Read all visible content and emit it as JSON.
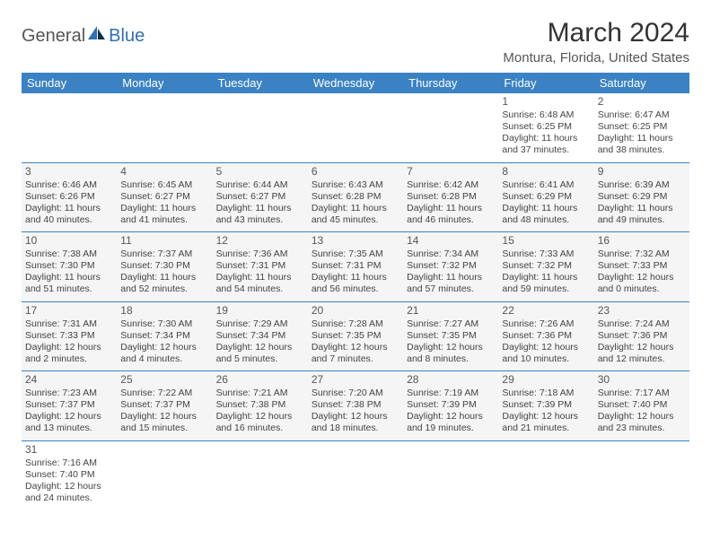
{
  "brand": {
    "general": "General",
    "blue": "Blue"
  },
  "title": "March 2024",
  "location": "Montura, Florida, United States",
  "colors": {
    "header_bg": "#3b82c4",
    "header_text": "#ffffff",
    "rule": "#3b82c4",
    "cell_bg": "#f5f5f5",
    "page_bg": "#ffffff",
    "logo_blue": "#2f6fb3",
    "text": "#444444"
  },
  "weekdays": [
    "Sunday",
    "Monday",
    "Tuesday",
    "Wednesday",
    "Thursday",
    "Friday",
    "Saturday"
  ],
  "weeks": [
    [
      null,
      null,
      null,
      null,
      null,
      {
        "d": "1",
        "sr": "Sunrise: 6:48 AM",
        "ss": "Sunset: 6:25 PM",
        "dl1": "Daylight: 11 hours",
        "dl2": "and 37 minutes."
      },
      {
        "d": "2",
        "sr": "Sunrise: 6:47 AM",
        "ss": "Sunset: 6:25 PM",
        "dl1": "Daylight: 11 hours",
        "dl2": "and 38 minutes."
      }
    ],
    [
      {
        "d": "3",
        "sr": "Sunrise: 6:46 AM",
        "ss": "Sunset: 6:26 PM",
        "dl1": "Daylight: 11 hours",
        "dl2": "and 40 minutes."
      },
      {
        "d": "4",
        "sr": "Sunrise: 6:45 AM",
        "ss": "Sunset: 6:27 PM",
        "dl1": "Daylight: 11 hours",
        "dl2": "and 41 minutes."
      },
      {
        "d": "5",
        "sr": "Sunrise: 6:44 AM",
        "ss": "Sunset: 6:27 PM",
        "dl1": "Daylight: 11 hours",
        "dl2": "and 43 minutes."
      },
      {
        "d": "6",
        "sr": "Sunrise: 6:43 AM",
        "ss": "Sunset: 6:28 PM",
        "dl1": "Daylight: 11 hours",
        "dl2": "and 45 minutes."
      },
      {
        "d": "7",
        "sr": "Sunrise: 6:42 AM",
        "ss": "Sunset: 6:28 PM",
        "dl1": "Daylight: 11 hours",
        "dl2": "and 46 minutes."
      },
      {
        "d": "8",
        "sr": "Sunrise: 6:41 AM",
        "ss": "Sunset: 6:29 PM",
        "dl1": "Daylight: 11 hours",
        "dl2": "and 48 minutes."
      },
      {
        "d": "9",
        "sr": "Sunrise: 6:39 AM",
        "ss": "Sunset: 6:29 PM",
        "dl1": "Daylight: 11 hours",
        "dl2": "and 49 minutes."
      }
    ],
    [
      {
        "d": "10",
        "sr": "Sunrise: 7:38 AM",
        "ss": "Sunset: 7:30 PM",
        "dl1": "Daylight: 11 hours",
        "dl2": "and 51 minutes."
      },
      {
        "d": "11",
        "sr": "Sunrise: 7:37 AM",
        "ss": "Sunset: 7:30 PM",
        "dl1": "Daylight: 11 hours",
        "dl2": "and 52 minutes."
      },
      {
        "d": "12",
        "sr": "Sunrise: 7:36 AM",
        "ss": "Sunset: 7:31 PM",
        "dl1": "Daylight: 11 hours",
        "dl2": "and 54 minutes."
      },
      {
        "d": "13",
        "sr": "Sunrise: 7:35 AM",
        "ss": "Sunset: 7:31 PM",
        "dl1": "Daylight: 11 hours",
        "dl2": "and 56 minutes."
      },
      {
        "d": "14",
        "sr": "Sunrise: 7:34 AM",
        "ss": "Sunset: 7:32 PM",
        "dl1": "Daylight: 11 hours",
        "dl2": "and 57 minutes."
      },
      {
        "d": "15",
        "sr": "Sunrise: 7:33 AM",
        "ss": "Sunset: 7:32 PM",
        "dl1": "Daylight: 11 hours",
        "dl2": "and 59 minutes."
      },
      {
        "d": "16",
        "sr": "Sunrise: 7:32 AM",
        "ss": "Sunset: 7:33 PM",
        "dl1": "Daylight: 12 hours",
        "dl2": "and 0 minutes."
      }
    ],
    [
      {
        "d": "17",
        "sr": "Sunrise: 7:31 AM",
        "ss": "Sunset: 7:33 PM",
        "dl1": "Daylight: 12 hours",
        "dl2": "and 2 minutes."
      },
      {
        "d": "18",
        "sr": "Sunrise: 7:30 AM",
        "ss": "Sunset: 7:34 PM",
        "dl1": "Daylight: 12 hours",
        "dl2": "and 4 minutes."
      },
      {
        "d": "19",
        "sr": "Sunrise: 7:29 AM",
        "ss": "Sunset: 7:34 PM",
        "dl1": "Daylight: 12 hours",
        "dl2": "and 5 minutes."
      },
      {
        "d": "20",
        "sr": "Sunrise: 7:28 AM",
        "ss": "Sunset: 7:35 PM",
        "dl1": "Daylight: 12 hours",
        "dl2": "and 7 minutes."
      },
      {
        "d": "21",
        "sr": "Sunrise: 7:27 AM",
        "ss": "Sunset: 7:35 PM",
        "dl1": "Daylight: 12 hours",
        "dl2": "and 8 minutes."
      },
      {
        "d": "22",
        "sr": "Sunrise: 7:26 AM",
        "ss": "Sunset: 7:36 PM",
        "dl1": "Daylight: 12 hours",
        "dl2": "and 10 minutes."
      },
      {
        "d": "23",
        "sr": "Sunrise: 7:24 AM",
        "ss": "Sunset: 7:36 PM",
        "dl1": "Daylight: 12 hours",
        "dl2": "and 12 minutes."
      }
    ],
    [
      {
        "d": "24",
        "sr": "Sunrise: 7:23 AM",
        "ss": "Sunset: 7:37 PM",
        "dl1": "Daylight: 12 hours",
        "dl2": "and 13 minutes."
      },
      {
        "d": "25",
        "sr": "Sunrise: 7:22 AM",
        "ss": "Sunset: 7:37 PM",
        "dl1": "Daylight: 12 hours",
        "dl2": "and 15 minutes."
      },
      {
        "d": "26",
        "sr": "Sunrise: 7:21 AM",
        "ss": "Sunset: 7:38 PM",
        "dl1": "Daylight: 12 hours",
        "dl2": "and 16 minutes."
      },
      {
        "d": "27",
        "sr": "Sunrise: 7:20 AM",
        "ss": "Sunset: 7:38 PM",
        "dl1": "Daylight: 12 hours",
        "dl2": "and 18 minutes."
      },
      {
        "d": "28",
        "sr": "Sunrise: 7:19 AM",
        "ss": "Sunset: 7:39 PM",
        "dl1": "Daylight: 12 hours",
        "dl2": "and 19 minutes."
      },
      {
        "d": "29",
        "sr": "Sunrise: 7:18 AM",
        "ss": "Sunset: 7:39 PM",
        "dl1": "Daylight: 12 hours",
        "dl2": "and 21 minutes."
      },
      {
        "d": "30",
        "sr": "Sunrise: 7:17 AM",
        "ss": "Sunset: 7:40 PM",
        "dl1": "Daylight: 12 hours",
        "dl2": "and 23 minutes."
      }
    ],
    [
      {
        "d": "31",
        "sr": "Sunrise: 7:16 AM",
        "ss": "Sunset: 7:40 PM",
        "dl1": "Daylight: 12 hours",
        "dl2": "and 24 minutes."
      },
      null,
      null,
      null,
      null,
      null,
      null
    ]
  ]
}
